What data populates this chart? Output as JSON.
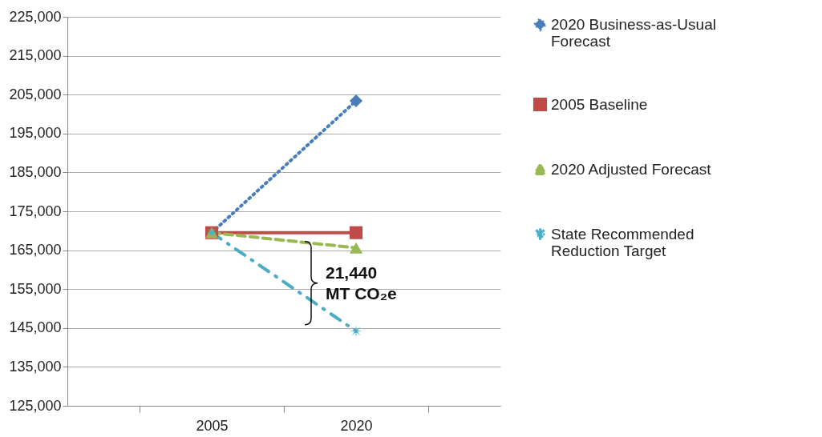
{
  "chart_data": {
    "type": "line",
    "categories": [
      "2005",
      "2020"
    ],
    "series": [
      {
        "name": "2020 Business-as-Usual Forecast",
        "color": "#4a7ebb",
        "values": [
          169500,
          203400
        ],
        "marker": "diamond",
        "line_style": "dotted"
      },
      {
        "name": "2005 Baseline",
        "color": "#be4b48",
        "values": [
          169500,
          169500
        ],
        "marker": "square",
        "line_style": "solid"
      },
      {
        "name": "2020 Adjusted Forecast",
        "color": "#98b954",
        "values": [
          169500,
          165600
        ],
        "marker": "triangle",
        "line_style": "dashed"
      },
      {
        "name": "State Recommended Reduction Target",
        "color": "#4bacc6",
        "values": [
          169500,
          144200
        ],
        "marker": "star",
        "line_style": "dashdot"
      }
    ],
    "ylim": [
      125000,
      225000
    ],
    "yticks": [
      {
        "value": 125000,
        "label": "125,000"
      },
      {
        "value": 135000,
        "label": "135,000"
      },
      {
        "value": 145000,
        "label": "145,000"
      },
      {
        "value": 155000,
        "label": "155,000"
      },
      {
        "value": 165000,
        "label": "165,000"
      },
      {
        "value": 175000,
        "label": "175,000"
      },
      {
        "value": 185000,
        "label": "185,000"
      },
      {
        "value": 195000,
        "label": "195,000"
      },
      {
        "value": 205000,
        "label": "205,000"
      },
      {
        "value": 215000,
        "label": "215,000"
      },
      {
        "value": 225000,
        "label": "225,000"
      }
    ],
    "grid": "y",
    "legend": "right",
    "annotations": [
      "21,440 MT CO₂e"
    ]
  }
}
